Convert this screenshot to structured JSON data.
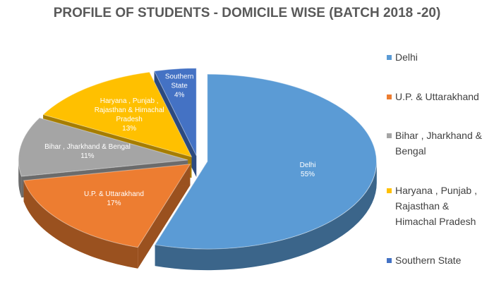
{
  "chart_data": {
    "type": "pie",
    "title": "PROFILE OF STUDENTS - DOMICILE WISE (BATCH 2018 -20)",
    "categories": [
      "Delhi",
      "U.P. & Uttarakhand",
      "Bihar , Jharkhand & Bengal",
      "Haryana , Punjab , Rajasthan & Himachal Pradesh",
      "Southern State"
    ],
    "values": [
      55,
      17,
      11,
      13,
      4
    ],
    "value_labels": [
      "55%",
      "17%",
      "11%",
      "13%",
      "4%"
    ],
    "colors": [
      "#5b9bd5",
      "#ed7d31",
      "#a5a5a5",
      "#ffc000",
      "#4472c4"
    ],
    "legend": "right"
  }
}
